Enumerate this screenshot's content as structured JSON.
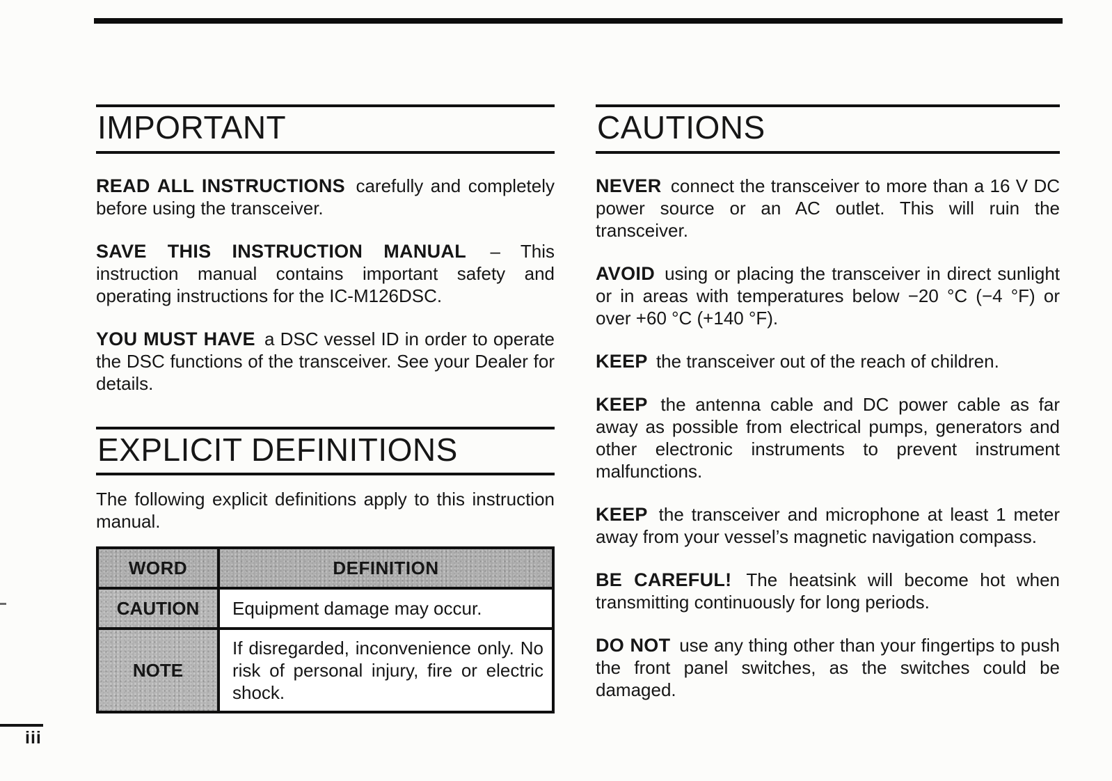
{
  "page": {
    "number": "iii"
  },
  "colors": {
    "ink": "#161616",
    "paper": "#fcfcfa",
    "table_header_gray": "#afafaf",
    "table_cell_gray": "#b7b7b7"
  },
  "left": {
    "important": {
      "title": "IMPORTANT",
      "paragraphs": [
        {
          "lead": "READ ALL INSTRUCTIONS",
          "text": " carefully and completely before using the transceiver."
        },
        {
          "lead": "SAVE THIS INSTRUCTION MANUAL",
          "text": " – This instruction manual contains important safety and operating instructions for the IC-M126DSC."
        },
        {
          "lead": "YOU MUST HAVE",
          "text": " a DSC vessel ID in order to operate the DSC functions of the transceiver.  See your Dealer for details."
        }
      ]
    },
    "definitions": {
      "title": "EXPLICIT DEFINITIONS",
      "intro": "The following explicit definitions apply to this instruction manual.",
      "table": {
        "headers": [
          "WORD",
          "DEFINITION"
        ],
        "rows": [
          {
            "word": "CAUTION",
            "definition": "Equipment damage may occur."
          },
          {
            "word": "NOTE",
            "definition": "If disregarded, inconvenience only.  No risk of personal injury, fire or electric shock."
          }
        ]
      }
    }
  },
  "right": {
    "cautions": {
      "title": "CAUTIONS",
      "paragraphs": [
        {
          "lead": "NEVER",
          "text": " connect the transceiver to more than a 16 V DC power source or an AC outlet.  This will ruin the transceiver."
        },
        {
          "lead": "AVOID",
          "text": " using or placing the transceiver in direct sunlight or in areas with temperatures below −20 °C (−4 °F) or over +60 °C (+140 °F)."
        },
        {
          "lead": "KEEP",
          "text": " the transceiver out of the reach of children."
        },
        {
          "lead": "KEEP",
          "text": " the antenna cable and DC power cable as far away as possible from electrical pumps, generators and other electronic instruments to prevent instrument malfunctions."
        },
        {
          "lead": "KEEP",
          "text": " the transceiver and microphone at least 1 meter away from your vessel’s magnetic navigation compass."
        },
        {
          "lead": "BE CAREFUL!",
          "text": " The heatsink will become hot when transmitting continuously for long periods."
        },
        {
          "lead": "DO NOT",
          "text": " use any thing other than your fingertips to push the front panel switches, as the switches could be damaged."
        }
      ]
    }
  }
}
